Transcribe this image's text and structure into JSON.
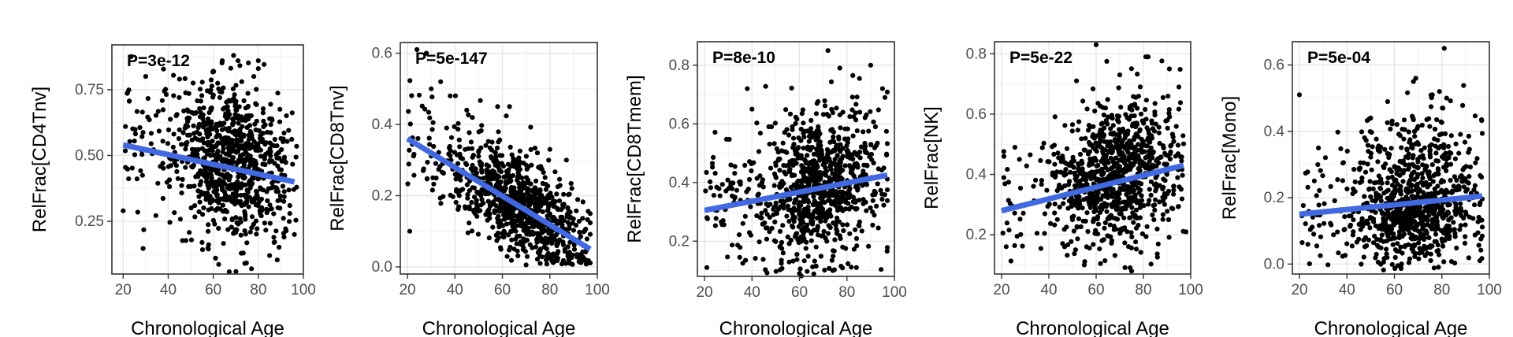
{
  "chart_data": [
    {
      "type": "scatter",
      "xlabel": "Chronological Age",
      "ylabel": "RelFrac[CD4Tnv]",
      "annotation": "P=3e-12",
      "xlim": [
        15,
        100
      ],
      "ylim": [
        0.05,
        0.92
      ],
      "xticks": [
        20,
        40,
        60,
        80,
        100
      ],
      "yticks": [
        0.25,
        0.5,
        0.75
      ],
      "ytick_labels": [
        "0.25",
        "0.50",
        "0.75"
      ],
      "grid": true,
      "fit_line": {
        "x": [
          20,
          96
        ],
        "y": [
          0.54,
          0.4
        ]
      },
      "point_cloud": {
        "n": 900,
        "x_center": 68,
        "x_spread": 12,
        "y_center": 0.49,
        "y_spread": 0.14
      },
      "points": [
        {
          "x": 20,
          "y": 0.29
        },
        {
          "x": 21,
          "y": 0.61
        },
        {
          "x": 22,
          "y": 0.74
        },
        {
          "x": 30,
          "y": 0.8
        },
        {
          "x": 45,
          "y": 0.79
        },
        {
          "x": 55,
          "y": 0.17
        },
        {
          "x": 60,
          "y": 0.82
        },
        {
          "x": 64,
          "y": 0.86
        },
        {
          "x": 69,
          "y": 0.88
        },
        {
          "x": 71,
          "y": 0.86
        },
        {
          "x": 78,
          "y": 0.8
        },
        {
          "x": 80,
          "y": 0.86
        },
        {
          "x": 80,
          "y": 0.83
        },
        {
          "x": 61,
          "y": 0.11
        },
        {
          "x": 77,
          "y": 0.07
        },
        {
          "x": 74,
          "y": 0.09
        },
        {
          "x": 85,
          "y": 0.12
        },
        {
          "x": 96,
          "y": 0.2
        },
        {
          "x": 94,
          "y": 0.31
        },
        {
          "x": 87,
          "y": 0.17
        }
      ]
    },
    {
      "type": "scatter",
      "xlabel": "Chronological Age",
      "ylabel": "RelFrac[CD8Tnv]",
      "annotation": "P=5e-147",
      "xlim": [
        17,
        100
      ],
      "ylim": [
        -0.02,
        0.63
      ],
      "xticks": [
        20,
        40,
        60,
        80,
        100
      ],
      "yticks": [
        0.0,
        0.2,
        0.4,
        0.6
      ],
      "ytick_labels": [
        "0.0",
        "0.2",
        "0.4",
        "0.6"
      ],
      "grid": true,
      "fit_line": {
        "x": [
          20,
          97
        ],
        "y": [
          0.36,
          0.05
        ]
      },
      "point_cloud": {
        "n": 900,
        "x_center": 68,
        "x_spread": 12,
        "mode": "decline",
        "noise": 0.07
      },
      "points": [
        {
          "x": 21,
          "y": 0.1
        },
        {
          "x": 24,
          "y": 0.61
        },
        {
          "x": 28,
          "y": 0.6
        },
        {
          "x": 34,
          "y": 0.52
        },
        {
          "x": 30,
          "y": 0.5
        },
        {
          "x": 38,
          "y": 0.48
        },
        {
          "x": 45,
          "y": 0.44
        },
        {
          "x": 58,
          "y": 0.45
        },
        {
          "x": 63,
          "y": 0.45
        },
        {
          "x": 65,
          "y": 0.12
        },
        {
          "x": 88,
          "y": 0.02
        },
        {
          "x": 94,
          "y": 0.06
        },
        {
          "x": 80,
          "y": 0.33
        },
        {
          "x": 87,
          "y": 0.3
        }
      ]
    },
    {
      "type": "scatter",
      "xlabel": "Chronological Age",
      "ylabel": "RelFrac[CD8Tmem]",
      "annotation": "P=8e-10",
      "xlim": [
        17,
        100
      ],
      "ylim": [
        0.08,
        0.88
      ],
      "xticks": [
        20,
        40,
        60,
        80,
        100
      ],
      "yticks": [
        0.2,
        0.4,
        0.6,
        0.8
      ],
      "ytick_labels": [
        "0.2",
        "0.4",
        "0.6",
        "0.8"
      ],
      "grid": true,
      "fit_line": {
        "x": [
          20,
          97
        ],
        "y": [
          0.305,
          0.425
        ]
      },
      "point_cloud": {
        "n": 900,
        "x_center": 68,
        "x_spread": 12,
        "y_center": 0.37,
        "y_spread": 0.12
      },
      "points": [
        {
          "x": 38,
          "y": 0.72
        },
        {
          "x": 40,
          "y": 0.65
        },
        {
          "x": 72,
          "y": 0.85
        },
        {
          "x": 77,
          "y": 0.79
        },
        {
          "x": 90,
          "y": 0.8
        },
        {
          "x": 95,
          "y": 0.72
        },
        {
          "x": 21,
          "y": 0.11
        },
        {
          "x": 60,
          "y": 0.09
        },
        {
          "x": 74,
          "y": 0.1
        },
        {
          "x": 84,
          "y": 0.11
        },
        {
          "x": 96,
          "y": 0.69
        },
        {
          "x": 92,
          "y": 0.59
        }
      ]
    },
    {
      "type": "scatter",
      "xlabel": "Chronological Age",
      "ylabel": "RelFrac[NK]",
      "annotation": "P=5e-22",
      "xlim": [
        17,
        100
      ],
      "ylim": [
        0.07,
        0.84
      ],
      "xticks": [
        20,
        40,
        60,
        80,
        100
      ],
      "yticks": [
        0.2,
        0.4,
        0.6,
        0.8
      ],
      "ytick_labels": [
        "0.2",
        "0.4",
        "0.6",
        "0.8"
      ],
      "grid": true,
      "fit_line": {
        "x": [
          20,
          97
        ],
        "y": [
          0.28,
          0.43
        ]
      },
      "point_cloud": {
        "n": 900,
        "x_center": 68,
        "x_spread": 12,
        "y_center": 0.38,
        "y_spread": 0.12
      },
      "points": [
        {
          "x": 60,
          "y": 0.83
        },
        {
          "x": 70,
          "y": 0.73
        },
        {
          "x": 81,
          "y": 0.79
        },
        {
          "x": 82,
          "y": 0.79
        },
        {
          "x": 91,
          "y": 0.75
        },
        {
          "x": 95,
          "y": 0.69
        },
        {
          "x": 21,
          "y": 0.46
        },
        {
          "x": 75,
          "y": 0.08
        },
        {
          "x": 98,
          "y": 0.21
        },
        {
          "x": 55,
          "y": 0.1
        }
      ]
    },
    {
      "type": "scatter",
      "xlabel": "Chronological Age",
      "ylabel": "RelFrac[Mono]",
      "annotation": "P=5e-04",
      "xlim": [
        17,
        100
      ],
      "ylim": [
        -0.03,
        0.67
      ],
      "xticks": [
        20,
        40,
        60,
        80,
        100
      ],
      "yticks": [
        0.0,
        0.2,
        0.4,
        0.6
      ],
      "ytick_labels": [
        "0.0",
        "0.2",
        "0.4",
        "0.6"
      ],
      "grid": true,
      "fit_line": {
        "x": [
          20,
          97
        ],
        "y": [
          0.15,
          0.205
        ]
      },
      "point_cloud": {
        "n": 900,
        "x_center": 68,
        "x_spread": 12,
        "y_center": 0.17,
        "y_spread": 0.09,
        "skew": true
      },
      "points": [
        {
          "x": 20,
          "y": 0.51
        },
        {
          "x": 81,
          "y": 0.65
        },
        {
          "x": 68,
          "y": 0.55
        },
        {
          "x": 69,
          "y": 0.56
        },
        {
          "x": 76,
          "y": 0.51
        },
        {
          "x": 79,
          "y": 0.52
        },
        {
          "x": 82,
          "y": 0.5
        },
        {
          "x": 49,
          "y": 0.34
        },
        {
          "x": 28,
          "y": 0.35
        },
        {
          "x": 96,
          "y": 0.01
        },
        {
          "x": 50,
          "y": 0.44
        }
      ]
    }
  ],
  "colors": {
    "point": "#000000",
    "fit_line": "#4169e1",
    "grid": "#e6e6e6",
    "panel_border": "#333333",
    "tick_label": "#4d4d4d"
  }
}
